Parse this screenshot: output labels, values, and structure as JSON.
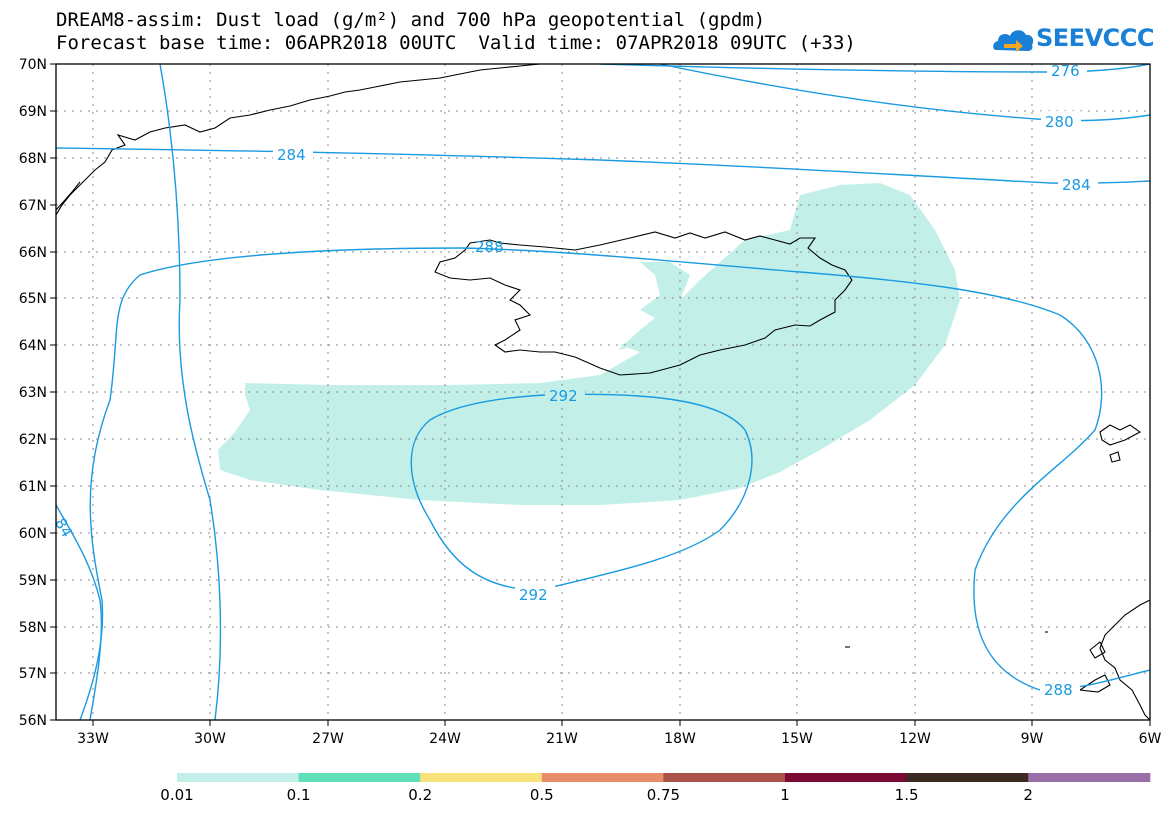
{
  "title": {
    "line1": "DREAM8-assim: Dust load (g/m²) and 700 hPa geopotential (gpdm)",
    "base_time": "Forecast base time: 06APR2018 00UTC",
    "valid_time": "Valid time: 07APR2018 09UTC (+33)"
  },
  "logo": {
    "text": "SEEVCCC",
    "icon": "cloud-arrow-icon",
    "color": "#1a7fd6"
  },
  "map": {
    "lat_labels": [
      "70N",
      "69N",
      "68N",
      "67N",
      "66N",
      "65N",
      "64N",
      "63N",
      "62N",
      "61N",
      "60N",
      "59N",
      "58N",
      "57N",
      "56N"
    ],
    "lon_labels": [
      "33W",
      "30W",
      "27W",
      "24W",
      "21W",
      "18W",
      "15W",
      "12W",
      "9W",
      "6W"
    ],
    "contour_color": "#1a9ae0",
    "dust_fill_color": "#c2f0e8",
    "contour_labels": [
      "276",
      "280",
      "284",
      "284",
      "288",
      "292",
      "292",
      "84",
      "288"
    ]
  },
  "colorbar": {
    "colors": [
      "#c2f0e8",
      "#5fe0b8",
      "#f8e27a",
      "#e88c6a",
      "#a8524a",
      "#7a0a34",
      "#3a2a22",
      "#9a6ea8"
    ],
    "labels": [
      "0.01",
      "0.1",
      "0.2",
      "0.5",
      "0.75",
      "1",
      "1.5",
      "2"
    ]
  }
}
